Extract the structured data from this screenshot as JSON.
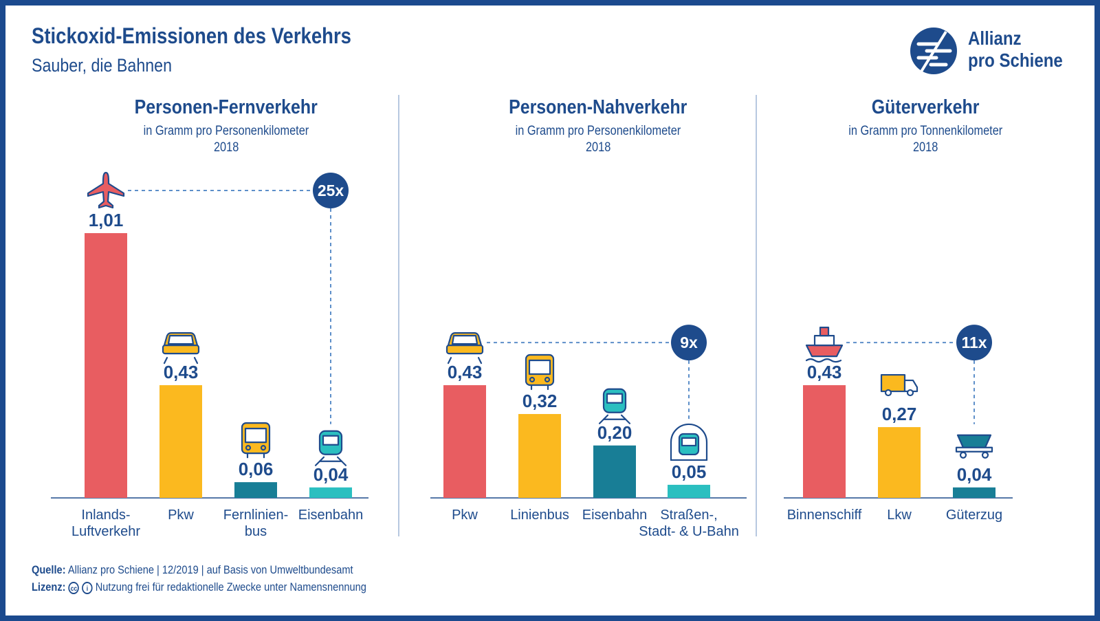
{
  "header": {
    "title": "Stickoxid-Emissionen des Verkehrs",
    "subtitle": "Sauber, die Bahnen"
  },
  "logo": {
    "line1": "Allianz",
    "line2": "pro Schiene"
  },
  "colors": {
    "red": "#e85d61",
    "yellow": "#fbb91f",
    "teal": "#187e96",
    "turquoise": "#2bbfc0",
    "navy": "#1e4b8c",
    "divider": "#9fb6d6"
  },
  "chart_data": [
    {
      "type": "bar",
      "title": "Personen-Fernverkehr",
      "unit": "in Gramm pro Personenkilometer",
      "year": "2018",
      "categories": [
        "Inlands-\nLuftverkehr",
        "Pkw",
        "Fernlinien-\nbus",
        "Eisenbahn"
      ],
      "values": [
        1.01,
        0.43,
        0.06,
        0.04
      ],
      "value_labels": [
        "1,01",
        "0,43",
        "0,06",
        "0,04"
      ],
      "colors": [
        "red",
        "yellow",
        "teal",
        "turquoise"
      ],
      "icons": [
        "airplane-icon",
        "car-icon",
        "bus-icon",
        "train-icon"
      ],
      "comparison": "25x",
      "ylim": [
        0,
        1.01
      ]
    },
    {
      "type": "bar",
      "title": "Personen-Nahverkehr",
      "unit": "in Gramm pro Personenkilometer",
      "year": "2018",
      "categories": [
        "Pkw",
        "Linienbus",
        "Eisenbahn",
        "Straßen-,\nStadt- & U-Bahn"
      ],
      "values": [
        0.43,
        0.32,
        0.2,
        0.05
      ],
      "value_labels": [
        "0,43",
        "0,32",
        "0,20",
        "0,05"
      ],
      "colors": [
        "red",
        "yellow",
        "teal",
        "turquoise"
      ],
      "icons": [
        "car-icon",
        "bus-icon",
        "train-icon",
        "subway-icon"
      ],
      "comparison": "9x",
      "ylim": [
        0,
        1.01
      ]
    },
    {
      "type": "bar",
      "title": "Güterverkehr",
      "unit": "in Gramm pro Tonnenkilometer",
      "year": "2018",
      "categories": [
        "Binnenschiff",
        "Lkw",
        "Güterzug"
      ],
      "values": [
        0.43,
        0.27,
        0.04
      ],
      "value_labels": [
        "0,43",
        "0,27",
        "0,04"
      ],
      "colors": [
        "red",
        "yellow",
        "teal"
      ],
      "icons": [
        "ship-icon",
        "truck-icon",
        "freight-wagon-icon"
      ],
      "comparison": "11x",
      "ylim": [
        0,
        1.01
      ]
    }
  ],
  "footer": {
    "source_label": "Quelle:",
    "source_text": "Allianz pro Schiene | 12/2019 | auf Basis von Umweltbundesamt",
    "license_label": "Lizenz:",
    "cc_glyph": "cc",
    "by_glyph": "i",
    "license_text": "Nutzung frei für redaktionelle Zwecke unter Namensnennung"
  }
}
